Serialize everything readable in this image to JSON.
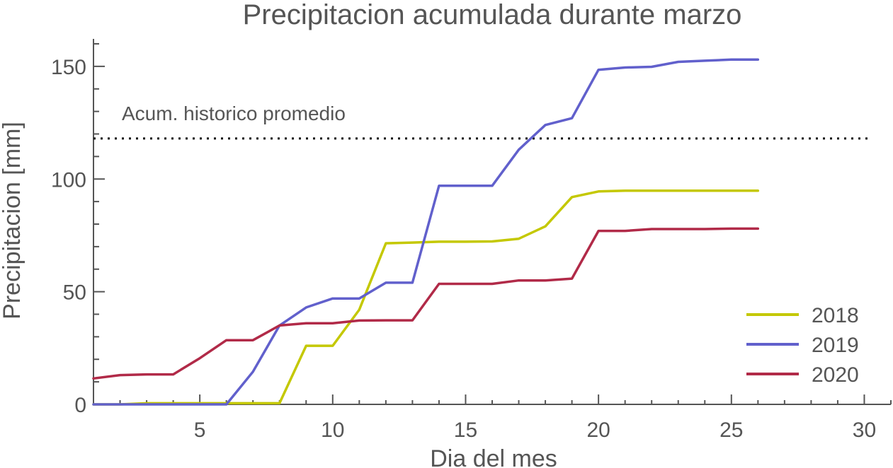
{
  "chart_data": {
    "type": "line",
    "title": "Precipitacion acumulada durante marzo",
    "xlabel": "Dia del mes",
    "ylabel": "Precipitacion [mm]",
    "xlim": [
      1,
      31
    ],
    "ylim": [
      0,
      160
    ],
    "x_ticks": [
      5,
      10,
      15,
      20,
      25,
      30
    ],
    "y_ticks": [
      0,
      50,
      100,
      150
    ],
    "x_minor_step": 1,
    "y_minor_step": 10,
    "grid": false,
    "legend_position": "bottom-right",
    "reference_line": {
      "label": "Acum. historico promedio",
      "value": 118,
      "style": "dotted",
      "color": "#111111"
    },
    "x": [
      1,
      2,
      3,
      4,
      5,
      6,
      7,
      8,
      9,
      10,
      11,
      12,
      13,
      14,
      15,
      16,
      17,
      18,
      19,
      20,
      21,
      22,
      23,
      24,
      25,
      26
    ],
    "series": [
      {
        "name": "2018",
        "color": "#c4c800",
        "values": [
          0,
          0,
          0.5,
          0.5,
          0.5,
          0.5,
          0.5,
          0.5,
          26,
          26,
          42,
          71.5,
          71.8,
          72.2,
          72.2,
          72.3,
          73.5,
          79,
          92,
          94.5,
          94.8,
          94.8,
          94.8,
          94.8,
          94.8,
          94.8
        ]
      },
      {
        "name": "2019",
        "color": "#6160cc",
        "values": [
          0,
          0,
          0,
          0,
          0,
          0,
          14.5,
          35,
          43,
          47,
          47,
          54,
          54,
          97,
          97,
          97,
          113,
          124,
          127,
          148.5,
          149.5,
          149.8,
          152,
          152.5,
          153,
          153
        ]
      },
      {
        "name": "2020",
        "color": "#b12a48",
        "values": [
          11.5,
          13,
          13.3,
          13.3,
          20.5,
          28.5,
          28.5,
          35,
          36,
          36,
          37.2,
          37.3,
          37.3,
          53.5,
          53.5,
          53.5,
          55,
          55,
          55.8,
          77,
          77,
          77.8,
          77.8,
          77.8,
          78,
          78
        ]
      }
    ]
  }
}
